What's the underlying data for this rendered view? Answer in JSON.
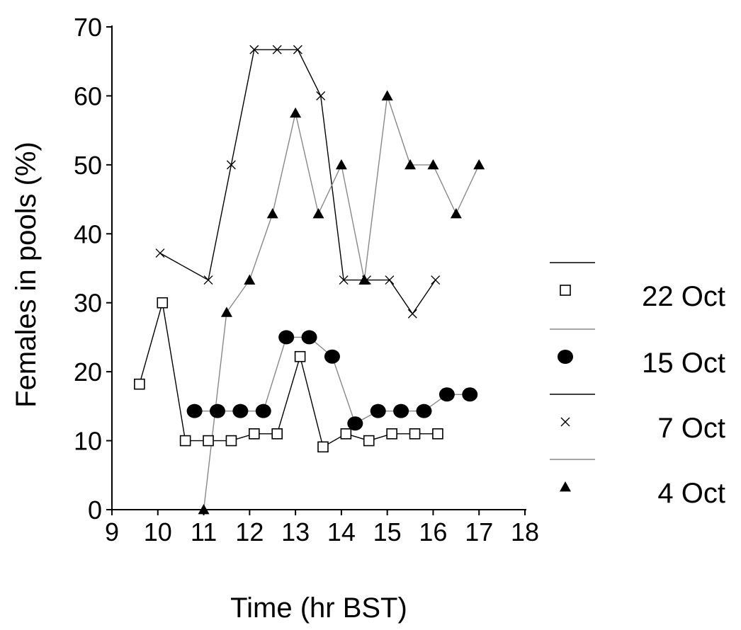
{
  "chart_data": {
    "type": "line",
    "title": "",
    "xlabel": "Time (hr BST)",
    "ylabel": "Females in pools (%)",
    "xlim": [
      9,
      18
    ],
    "ylim": [
      0,
      70
    ],
    "x_ticks": [
      9,
      10,
      11,
      12,
      13,
      14,
      15,
      16,
      17,
      18
    ],
    "y_ticks": [
      0,
      10,
      20,
      30,
      40,
      50,
      60,
      70
    ],
    "legend_position": "right",
    "series": [
      {
        "name": "22 Oct",
        "marker": "open-square",
        "line_color": "#000000",
        "x": [
          9.6,
          10.1,
          10.6,
          11.1,
          11.6,
          12.1,
          12.6,
          13.1,
          13.6,
          14.1,
          14.6,
          15.1,
          15.6,
          16.1
        ],
        "y": [
          18.2,
          30,
          10,
          10,
          10,
          11,
          11,
          22.2,
          9.1,
          11,
          10,
          11,
          11,
          11
        ]
      },
      {
        "name": "15 Oct",
        "marker": "filled-circle",
        "line_color": "#888888",
        "x": [
          10.8,
          11.3,
          11.8,
          12.3,
          12.8,
          13.3,
          13.8,
          14.3,
          14.8,
          15.3,
          15.8,
          16.3,
          16.8
        ],
        "y": [
          14.3,
          14.3,
          14.3,
          14.3,
          25,
          25,
          22.2,
          12.5,
          14.3,
          14.3,
          14.3,
          16.7,
          16.7
        ]
      },
      {
        "name": "7 Oct",
        "marker": "x",
        "line_color": "#000000",
        "x": [
          10.05,
          11.1,
          11.6,
          12.1,
          12.6,
          13.05,
          13.55,
          14.05,
          14.55,
          15.05,
          15.55,
          16.05
        ],
        "y": [
          37.2,
          33.3,
          50,
          66.7,
          66.7,
          66.7,
          60,
          33.3,
          33.3,
          33.3,
          28.4,
          33.3
        ]
      },
      {
        "name": "4 Oct",
        "marker": "filled-triangle",
        "line_color": "#888888",
        "x": [
          11,
          11.5,
          12,
          12.5,
          13,
          13.5,
          14,
          14.5,
          15,
          15.5,
          16,
          16.5,
          17
        ],
        "y": [
          0,
          28.6,
          33.3,
          42.9,
          57.5,
          42.9,
          50,
          33.3,
          60,
          50,
          50,
          42.9,
          50
        ]
      }
    ]
  }
}
